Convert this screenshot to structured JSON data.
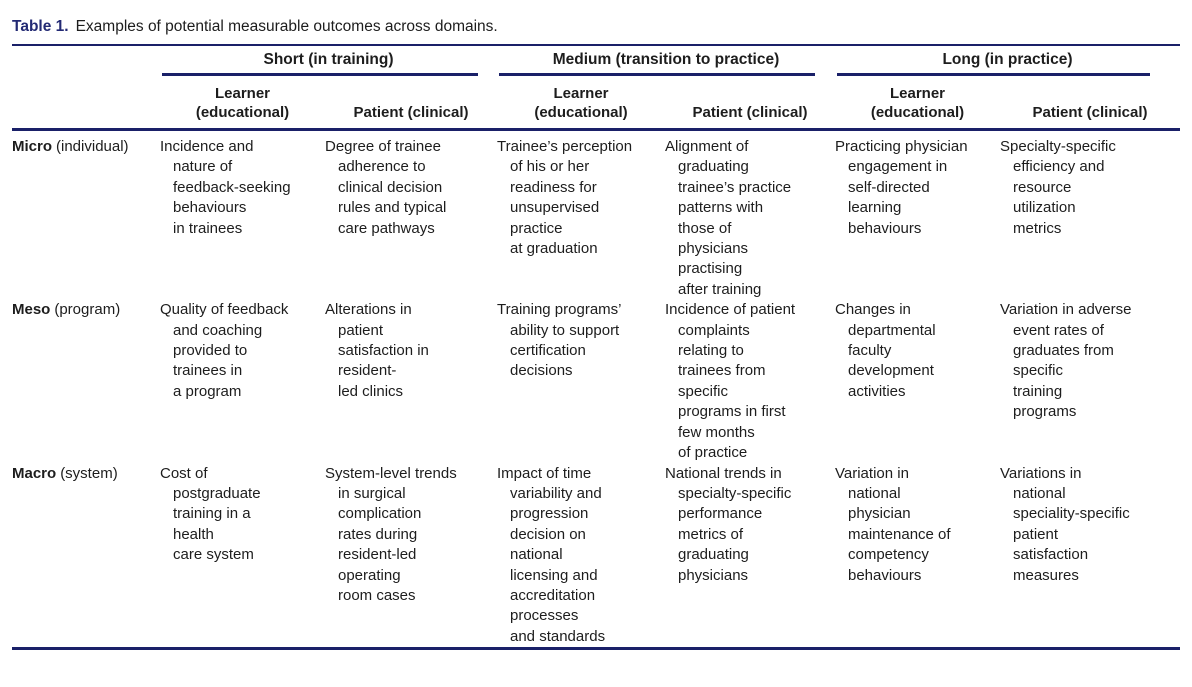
{
  "colors": {
    "rule_navy": "#1a2068",
    "caption_label_navy": "#232a74",
    "body_text": "#1d1d1d"
  },
  "caption": {
    "label": "Table 1.",
    "text": "Examples of potential measurable outcomes across domains."
  },
  "header": {
    "groups": [
      {
        "label": "Short (in training)",
        "columns": [
          "Learner\n(educational)",
          "Patient (clinical)"
        ]
      },
      {
        "label": "Medium (transition to practice)",
        "columns": [
          "Learner\n(educational)",
          "Patient (clinical)"
        ]
      },
      {
        "label": "Long (in practice)",
        "columns": [
          "Learner\n(educational)",
          "Patient (clinical)"
        ]
      }
    ]
  },
  "rows": [
    {
      "level": "Micro",
      "level_qualifier": "(individual)",
      "cells": [
        "Incidence and\nnature of\nfeedback-seeking\nbehaviours\nin trainees",
        "Degree of trainee\nadherence to\nclinical decision\nrules and typical\ncare pathways",
        "Trainee’s perception\nof his or her\nreadiness for\nunsupervised\npractice\nat graduation",
        "Alignment of\ngraduating\ntrainee’s practice\npatterns with\nthose of\nphysicians\npractising\nafter training",
        "Practicing physician\nengagement in\nself-directed\nlearning\nbehaviours",
        "Specialty-specific\nefficiency and\nresource\nutilization\nmetrics"
      ]
    },
    {
      "level": "Meso",
      "level_qualifier": "(program)",
      "cells": [
        "Quality of feedback\nand coaching\nprovided to\ntrainees in\na program",
        "Alterations in\npatient\nsatisfaction in\nresident-\nled clinics",
        "Training programs’\nability to support\ncertification\ndecisions",
        "Incidence of patient\ncomplaints\nrelating to\ntrainees from\nspecific\nprograms in first\nfew months\nof practice",
        "Changes in\ndepartmental\nfaculty\ndevelopment\nactivities",
        "Variation in adverse\nevent rates of\ngraduates from\nspecific\ntraining\nprograms"
      ]
    },
    {
      "level": "Macro",
      "level_qualifier": "(system)",
      "cells": [
        "Cost of\npostgraduate\ntraining in a\nhealth\ncare system",
        "System-level trends\nin surgical\ncomplication\nrates during\nresident-led\noperating\nroom cases",
        "Impact of time\nvariability and\nprogression\ndecision on\nnational\nlicensing and\naccreditation\nprocesses\nand standards",
        "National trends in\nspecialty-specific\nperformance\nmetrics of\ngraduating\nphysicians",
        "Variation in\nnational\nphysician\nmaintenance of\ncompetency\nbehaviours",
        "Variations in\nnational\nspeciality-specific\npatient\nsatisfaction\nmeasures"
      ]
    }
  ]
}
